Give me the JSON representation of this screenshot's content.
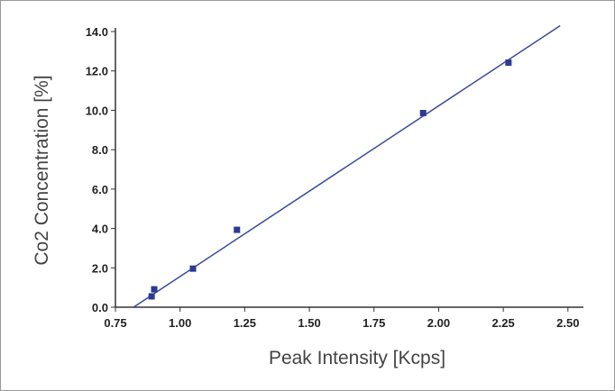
{
  "chart_data": {
    "type": "scatter",
    "x_label": "Peak Intensity [Kcps]",
    "y_label": "Co2 Concentration [%]",
    "x": [
      0.89,
      0.9,
      1.05,
      1.22,
      1.94,
      2.27
    ],
    "values": [
      0.55,
      0.91,
      1.96,
      3.93,
      9.86,
      12.42
    ],
    "color": "#2b3a93",
    "fit": {
      "x": [
        0.82,
        2.47
      ],
      "values": [
        0,
        14.3
      ],
      "color": "#3a4a9a"
    },
    "xlim": [
      0.75,
      2.56
    ],
    "ylim": [
      0,
      14
    ],
    "xticks": [
      0.75,
      {
        "value": 1,
        "label": "1.00"
      },
      1.25,
      {
        "value": 1.5,
        "label": "1.50"
      },
      1.75,
      {
        "value": 2,
        "label": "2.00"
      },
      2.25,
      {
        "value": 2.5,
        "label": "2.50"
      }
    ],
    "yticks": [
      {
        "value": 0,
        "label": "0.0"
      },
      {
        "value": 2,
        "label": "2.0"
      },
      {
        "value": 4,
        "label": "4.0"
      },
      {
        "value": 6,
        "label": "6.0"
      },
      {
        "value": 8,
        "label": "8.0"
      },
      {
        "value": 10,
        "label": "10.0"
      },
      {
        "value": 12,
        "label": "12.0"
      },
      {
        "value": 14,
        "label": "14.0"
      }
    ]
  }
}
